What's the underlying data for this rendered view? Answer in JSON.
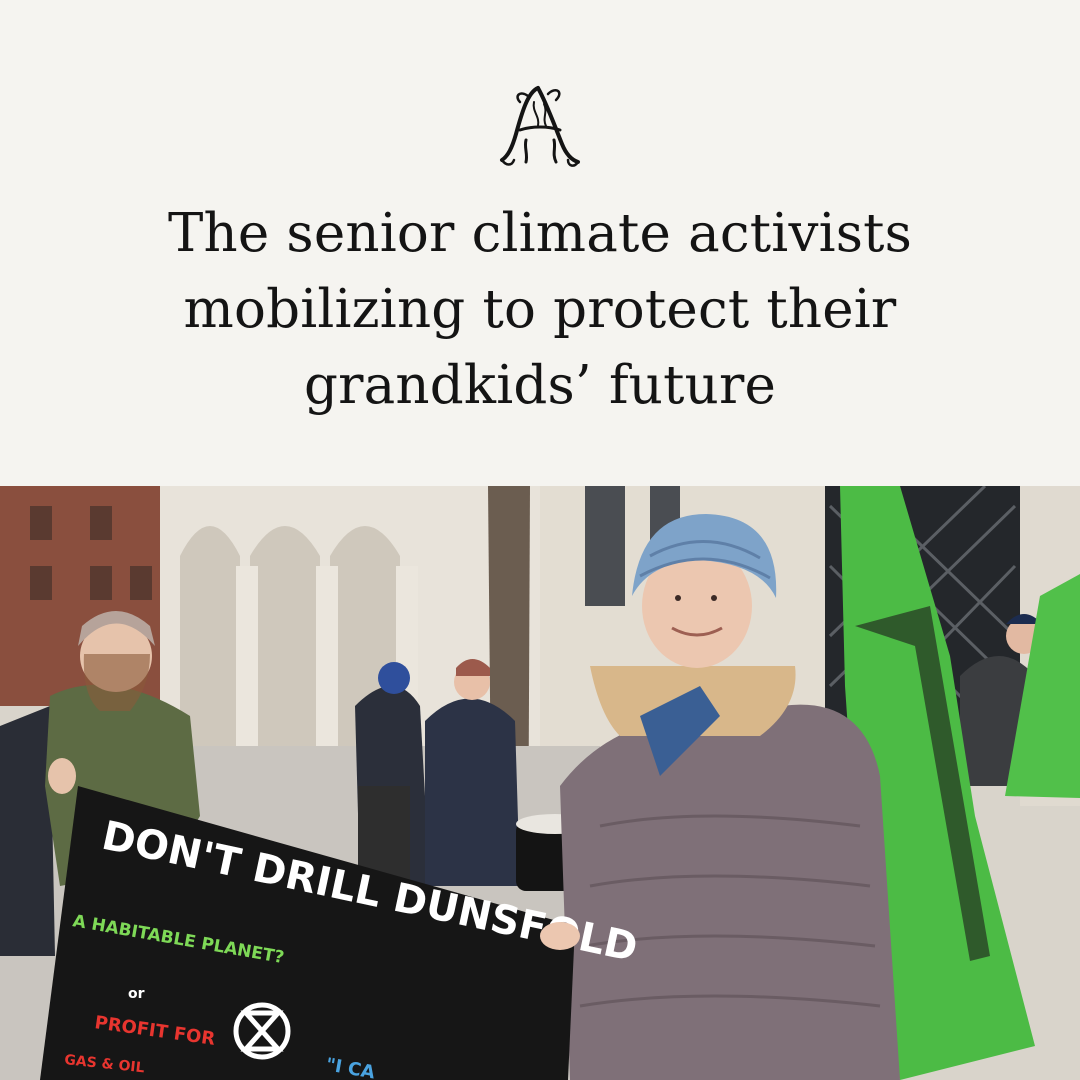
{
  "brand": {
    "logo_icon": "ornate-monogram-a-icon",
    "colors": {
      "background": "#f5f4f0",
      "text": "#141414"
    }
  },
  "article": {
    "headline": "The senior climate activists\nmobilizing to protect their\ngrandkids’ future"
  },
  "photo": {
    "banner": {
      "main_text": "DON'T DRILL DUNSFOLD",
      "line1": "A HABITABLE PLANET?",
      "line2": "or",
      "line3": "PROFIT FOR",
      "line4": "GAS & OIL",
      "quote": "\"I CA"
    }
  }
}
